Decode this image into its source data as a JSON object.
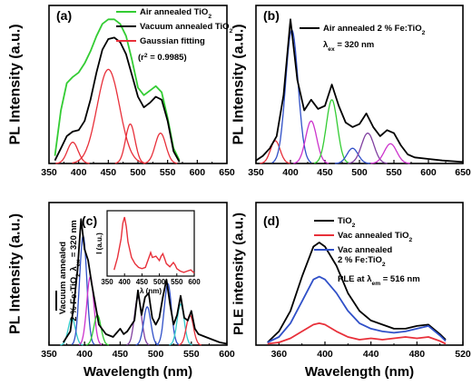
{
  "chart_data": [
    {
      "panel": "(a)",
      "type": "line",
      "xlabel": "",
      "ylabel": "PL Intensity (a.u.)",
      "xlim": [
        350,
        650
      ],
      "xticks": [
        350,
        400,
        450,
        500,
        550,
        600,
        650
      ],
      "legend": [
        {
          "label": "Air annealed TiO",
          "sub": "2",
          "color": "#33cc33"
        },
        {
          "label": "Vacuum annealed TiO",
          "sub": "2",
          "color": "#000000"
        },
        {
          "label": "Gaussian fitting",
          "color": "#e8303a"
        }
      ],
      "legend_note": {
        "pre": "(r",
        "sup": "2",
        "post": " = 0.9985)"
      },
      "series": [
        {
          "name": "Air annealed TiO2",
          "color": "#33cc33",
          "x": [
            360,
            370,
            380,
            390,
            400,
            410,
            420,
            430,
            440,
            450,
            460,
            470,
            480,
            490,
            500,
            510,
            520,
            530,
            540,
            550,
            560,
            570
          ],
          "values": [
            0.05,
            0.35,
            0.53,
            0.57,
            0.6,
            0.66,
            0.74,
            0.84,
            0.92,
            0.95,
            0.95,
            0.92,
            0.84,
            0.68,
            0.5,
            0.45,
            0.48,
            0.51,
            0.47,
            0.3,
            0.1,
            0.02
          ]
        },
        {
          "name": "Vacuum annealed TiO2",
          "color": "#000000",
          "x": [
            360,
            370,
            380,
            390,
            400,
            410,
            420,
            430,
            440,
            450,
            460,
            470,
            480,
            490,
            500,
            510,
            520,
            530,
            540,
            550,
            560,
            570
          ],
          "values": [
            0.02,
            0.1,
            0.18,
            0.21,
            0.22,
            0.28,
            0.42,
            0.6,
            0.75,
            0.82,
            0.83,
            0.8,
            0.72,
            0.58,
            0.44,
            0.37,
            0.4,
            0.44,
            0.42,
            0.28,
            0.08,
            0.01
          ]
        },
        {
          "name": "Gaussian 1",
          "color": "#e8303a",
          "gauss": [
            0.14,
            390,
            9
          ]
        },
        {
          "name": "Gaussian 2",
          "color": "#e8303a",
          "gauss": [
            0.62,
            450,
            19
          ]
        },
        {
          "name": "Gaussian 3",
          "color": "#e8303a",
          "gauss": [
            0.26,
            487,
            8
          ]
        },
        {
          "name": "Gaussian 4",
          "color": "#e8303a",
          "gauss": [
            0.2,
            538,
            9
          ]
        }
      ]
    },
    {
      "panel": "(b)",
      "type": "line",
      "xlabel": "",
      "ylabel": "PL Intensity (a.u.)",
      "xlim": [
        350,
        650
      ],
      "xticks": [
        350,
        400,
        450,
        500,
        550,
        600,
        650
      ],
      "legend": [
        {
          "label": "Air annealed 2 % Fe:TiO",
          "sub": "2",
          "color": "#000000"
        }
      ],
      "legend_note": {
        "pre": "λ",
        "sub": "ex",
        "post": " = 320 nm"
      },
      "series": [
        {
          "name": "Air annealed 2 % Fe:TiO2",
          "color": "#000000",
          "x": [
            350,
            360,
            370,
            380,
            390,
            400,
            410,
            420,
            430,
            440,
            450,
            460,
            470,
            480,
            490,
            500,
            510,
            520,
            530,
            540,
            550,
            560,
            570,
            580,
            600,
            620,
            650
          ],
          "values": [
            0.02,
            0.05,
            0.1,
            0.18,
            0.45,
            0.95,
            0.55,
            0.35,
            0.42,
            0.36,
            0.38,
            0.52,
            0.38,
            0.27,
            0.24,
            0.26,
            0.33,
            0.24,
            0.18,
            0.22,
            0.2,
            0.12,
            0.06,
            0.04,
            0.03,
            0.02,
            0.01
          ]
        },
        {
          "name": "Gaussian 1",
          "color": "#e8303a",
          "gauss": [
            0.15,
            378,
            7
          ]
        },
        {
          "name": "Gaussian 2",
          "color": "#3050c8",
          "gauss": [
            0.88,
            402,
            9
          ]
        },
        {
          "name": "Gaussian 3",
          "color": "#cc33cc",
          "gauss": [
            0.28,
            430,
            8
          ]
        },
        {
          "name": "Gaussian 4",
          "color": "#33cc33",
          "gauss": [
            0.42,
            460,
            8
          ]
        },
        {
          "name": "Gaussian 5",
          "color": "#3050c8",
          "gauss": [
            0.1,
            490,
            8
          ]
        },
        {
          "name": "Gaussian 6",
          "color": "#8040a0",
          "gauss": [
            0.2,
            512,
            9
          ]
        },
        {
          "name": "Gaussian 7",
          "color": "#cc33cc",
          "gauss": [
            0.13,
            545,
            9
          ]
        }
      ]
    },
    {
      "panel": "(c)",
      "type": "line",
      "xlabel": "Wavelength (nm)",
      "ylabel": "PL Intensity (a.u.)",
      "xlim": [
        350,
        600
      ],
      "xticks": [
        350,
        400,
        450,
        500,
        550,
        600
      ],
      "side_legend": [
        "Vacuum annealed",
        {
          "pre": "2 % Fe:TiO",
          "sub": "2",
          "mid": " λ",
          "sub2": "ex",
          "post": " = 320 nm"
        }
      ],
      "series": [
        {
          "name": "Vacuum annealed 2 % Fe:TiO2",
          "color": "#000000",
          "x": [
            370,
            380,
            385,
            390,
            395,
            400,
            405,
            410,
            415,
            420,
            430,
            440,
            450,
            455,
            460,
            470,
            475,
            480,
            485,
            490,
            495,
            500,
            505,
            510,
            515,
            520,
            525,
            530,
            535,
            540,
            545,
            550,
            555,
            560,
            570,
            580,
            590,
            600
          ],
          "values": [
            0.02,
            0.1,
            0.3,
            0.55,
            0.92,
            0.7,
            0.62,
            0.45,
            0.3,
            0.15,
            0.08,
            0.06,
            0.12,
            0.08,
            0.1,
            0.18,
            0.4,
            0.22,
            0.35,
            0.38,
            0.2,
            0.15,
            0.2,
            0.35,
            0.48,
            0.3,
            0.15,
            0.22,
            0.36,
            0.2,
            0.18,
            0.25,
            0.12,
            0.08,
            0.06,
            0.04,
            0.02,
            0.01
          ]
        },
        {
          "name": "Gaussian 1",
          "color": "#33cccc",
          "gauss": [
            0.2,
            382,
            5
          ]
        },
        {
          "name": "Gaussian 2",
          "color": "#3050c8",
          "gauss": [
            0.8,
            398,
            5
          ]
        },
        {
          "name": "Gaussian 3",
          "color": "#cc33cc",
          "gauss": [
            0.5,
            408,
            5
          ]
        },
        {
          "name": "Gaussian 4",
          "color": "#33cc33",
          "gauss": [
            0.22,
            418,
            5
          ]
        },
        {
          "name": "Gaussian 5",
          "color": "#8040a0",
          "gauss": [
            0.35,
            475,
            5
          ]
        },
        {
          "name": "Gaussian 6",
          "color": "#3050c8",
          "gauss": [
            0.28,
            488,
            5
          ]
        },
        {
          "name": "Gaussian 7",
          "color": "#3050c8",
          "gauss": [
            0.45,
            517,
            5
          ]
        },
        {
          "name": "Gaussian 8",
          "color": "#33cccc",
          "gauss": [
            0.3,
            535,
            5
          ]
        },
        {
          "name": "Gaussian 9",
          "color": "#e8303a",
          "gauss": [
            0.22,
            548,
            5
          ]
        }
      ],
      "inset": {
        "type": "line",
        "ylabel": "I (a.u.)",
        "xlabel": "λ (nm)",
        "xlim": [
          350,
          600
        ],
        "xticks": [
          350,
          400,
          450,
          500,
          550,
          600
        ],
        "x": [
          370,
          380,
          390,
          395,
          400,
          405,
          410,
          420,
          430,
          440,
          450,
          460,
          470,
          475,
          480,
          490,
          500,
          505,
          510,
          515,
          520,
          530,
          540,
          545,
          550,
          560,
          570,
          580,
          590,
          600
        ],
        "values": [
          0.1,
          0.3,
          0.6,
          0.85,
          0.95,
          0.8,
          0.55,
          0.3,
          0.2,
          0.14,
          0.12,
          0.14,
          0.3,
          0.38,
          0.3,
          0.32,
          0.25,
          0.32,
          0.36,
          0.28,
          0.2,
          0.15,
          0.22,
          0.18,
          0.12,
          0.08,
          0.06,
          0.08,
          0.1,
          0.05
        ]
      }
    },
    {
      "panel": "(d)",
      "type": "line",
      "xlabel": "Wavelength (nm)",
      "ylabel": "PLE intensity (a.u.)",
      "xlim": [
        340,
        520
      ],
      "xticks": [
        360,
        400,
        440,
        480,
        520
      ],
      "legend": [
        {
          "label": "TiO",
          "sub": "2",
          "color": "#000000"
        },
        {
          "label": "Vac annealed TiO",
          "sub": "2",
          "color": "#e8303a"
        },
        {
          "label": "Vac annealed",
          "color": "#3050c8",
          "line2": {
            "pre": "2 % Fe:TiO",
            "sub": "2"
          }
        }
      ],
      "legend_note": {
        "pre": "PLE at λ",
        "sub": "em",
        "post": " = 516 nm"
      },
      "series": [
        {
          "name": "TiO2",
          "color": "#000000",
          "x": [
            350,
            360,
            370,
            380,
            390,
            395,
            400,
            410,
            420,
            430,
            440,
            450,
            460,
            470,
            480,
            490,
            500,
            505
          ],
          "values": [
            0.02,
            0.1,
            0.25,
            0.5,
            0.72,
            0.75,
            0.72,
            0.58,
            0.38,
            0.25,
            0.18,
            0.15,
            0.12,
            0.12,
            0.14,
            0.15,
            0.08,
            0.04
          ]
        },
        {
          "name": "Vac annealed TiO2",
          "color": "#e8303a",
          "x": [
            350,
            360,
            370,
            380,
            390,
            395,
            400,
            410,
            420,
            430,
            440,
            450,
            460,
            470,
            480,
            490,
            500,
            505
          ],
          "values": [
            0.01,
            0.02,
            0.05,
            0.1,
            0.15,
            0.16,
            0.15,
            0.1,
            0.06,
            0.04,
            0.05,
            0.04,
            0.05,
            0.06,
            0.05,
            0.06,
            0.03,
            0.01
          ]
        },
        {
          "name": "Vac annealed 2 % Fe:TiO2",
          "color": "#3050c8",
          "x": [
            350,
            360,
            370,
            380,
            390,
            395,
            400,
            410,
            420,
            430,
            440,
            450,
            460,
            470,
            480,
            490,
            500,
            505
          ],
          "values": [
            0.02,
            0.06,
            0.16,
            0.32,
            0.48,
            0.5,
            0.48,
            0.38,
            0.25,
            0.16,
            0.12,
            0.1,
            0.09,
            0.1,
            0.12,
            0.14,
            0.07,
            0.03
          ]
        }
      ]
    }
  ]
}
